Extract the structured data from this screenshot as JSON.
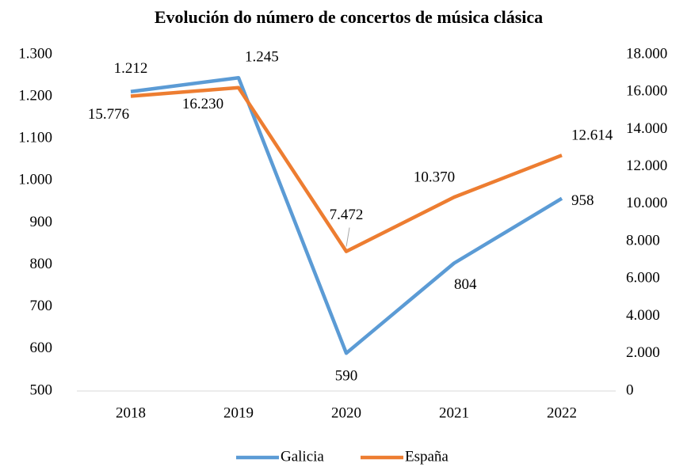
{
  "chart_data": {
    "type": "line",
    "title": "Evolución do número de concertos de música clásica",
    "categories": [
      "2018",
      "2019",
      "2020",
      "2021",
      "2022"
    ],
    "series": [
      {
        "name": "Galicia",
        "color": "#5b9bd5",
        "values": [
          1212,
          1245,
          590,
          804,
          958
        ],
        "value_labels": [
          "1.212",
          "1.245",
          "590",
          "804",
          "958"
        ]
      },
      {
        "name": "España",
        "color": "#ed7d31",
        "axis": "y2",
        "values": [
          15776,
          16230,
          7472,
          10370,
          12614
        ],
        "value_labels": [
          "15.776",
          "16.230",
          "7.472",
          "10.370",
          "12.614"
        ]
      }
    ],
    "ylim": [
      500,
      1300
    ],
    "yticks": [
      500,
      600,
      700,
      800,
      900,
      {
        "value": 1000,
        "label": "1.000"
      },
      {
        "value": 1100,
        "label": "1.100"
      },
      {
        "value": 1200,
        "label": "1.200"
      },
      {
        "value": 1300,
        "label": "1.300"
      }
    ],
    "y2lim": [
      0,
      18000
    ],
    "y2ticks": [
      0,
      {
        "value": 2000,
        "label": "2.000"
      },
      {
        "value": 4000,
        "label": "4.000"
      },
      {
        "value": 6000,
        "label": "6.000"
      },
      {
        "value": 8000,
        "label": "8.000"
      },
      {
        "value": 10000,
        "label": "10.000"
      },
      {
        "value": 12000,
        "label": "12.000"
      },
      {
        "value": 14000,
        "label": "14.000"
      },
      {
        "value": 16000,
        "label": "16.000"
      },
      {
        "value": 18000,
        "label": "18.000"
      }
    ],
    "grid": false,
    "legend": "bottom"
  }
}
